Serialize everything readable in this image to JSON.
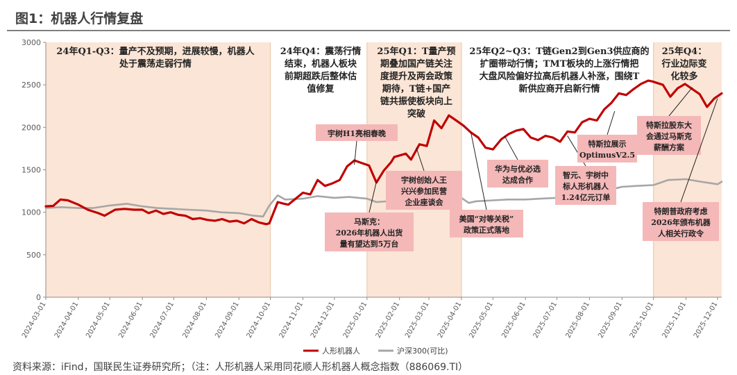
{
  "figure": {
    "title": "图1：机器人行情复盘",
    "source": "资料来源：iFind，国联民生证券研究所；（注：人形机器人采用同花顺人形机器人概念指数（886069.TI）"
  },
  "chart_data": {
    "type": "line",
    "title": "",
    "xlabel": "",
    "ylabel": "",
    "ylim": [
      0,
      3000
    ],
    "yticks": [
      "0",
      "500",
      "1000",
      "1500",
      "2000",
      "2500",
      "3000"
    ],
    "xticks": [
      "2024-03-01",
      "2024-04-01",
      "2024-05-01",
      "2024-06-01",
      "2024-07-01",
      "2024-08-01",
      "2024-09-01",
      "2024-10-01",
      "2024-11-01",
      "2024-12-01",
      "2025-01-01",
      "2025-02-01",
      "2025-03-01",
      "2025-04-01",
      "2025-05-01",
      "2025-06-01",
      "2025-07-01",
      "2025-08-01",
      "2025-09-01",
      "2025-10-01",
      "2025-11-01",
      "2025-12-01"
    ],
    "grid": false,
    "legend_position": "bottom",
    "colors": {
      "robot": "#c00000",
      "csi300": "#a6a6a6",
      "phase_band": "#fbe5d6",
      "annotation_box": "#f4b8b8"
    },
    "series": [
      {
        "name": "人形机器人",
        "color": "#c00000",
        "points": [
          [
            "2024-03-01",
            1070
          ],
          [
            "2024-03-08",
            1075
          ],
          [
            "2024-03-15",
            1150
          ],
          [
            "2024-03-22",
            1140
          ],
          [
            "2024-04-01",
            1090
          ],
          [
            "2024-04-10",
            1030
          ],
          [
            "2024-04-20",
            990
          ],
          [
            "2024-04-26",
            960
          ],
          [
            "2024-05-06",
            1030
          ],
          [
            "2024-05-15",
            1040
          ],
          [
            "2024-05-24",
            1030
          ],
          [
            "2024-06-01",
            1030
          ],
          [
            "2024-06-07",
            990
          ],
          [
            "2024-06-14",
            1020
          ],
          [
            "2024-06-21",
            980
          ],
          [
            "2024-06-28",
            1000
          ],
          [
            "2024-07-05",
            970
          ],
          [
            "2024-07-12",
            960
          ],
          [
            "2024-07-19",
            920
          ],
          [
            "2024-07-26",
            930
          ],
          [
            "2024-08-02",
            910
          ],
          [
            "2024-08-09",
            900
          ],
          [
            "2024-08-16",
            920
          ],
          [
            "2024-08-23",
            890
          ],
          [
            "2024-08-30",
            900
          ],
          [
            "2024-09-06",
            870
          ],
          [
            "2024-09-13",
            920
          ],
          [
            "2024-09-20",
            880
          ],
          [
            "2024-09-27",
            860
          ],
          [
            "2024-09-30",
            870
          ],
          [
            "2024-10-08",
            1120
          ],
          [
            "2024-10-14",
            1100
          ],
          [
            "2024-10-18",
            1090
          ],
          [
            "2024-10-25",
            1160
          ],
          [
            "2024-11-01",
            1230
          ],
          [
            "2024-11-08",
            1210
          ],
          [
            "2024-11-15",
            1380
          ],
          [
            "2024-11-22",
            1310
          ],
          [
            "2024-11-29",
            1340
          ],
          [
            "2024-12-06",
            1380
          ],
          [
            "2024-12-13",
            1540
          ],
          [
            "2024-12-20",
            1610
          ],
          [
            "2024-12-27",
            1580
          ],
          [
            "2025-01-03",
            1550
          ],
          [
            "2025-01-10",
            1350
          ],
          [
            "2025-01-17",
            1490
          ],
          [
            "2025-01-24",
            1590
          ],
          [
            "2025-01-27",
            1650
          ],
          [
            "2025-02-07",
            1690
          ],
          [
            "2025-02-12",
            1620
          ],
          [
            "2025-02-20",
            1800
          ],
          [
            "2025-02-27",
            1780
          ],
          [
            "2025-03-06",
            2080
          ],
          [
            "2025-03-13",
            1990
          ],
          [
            "2025-03-20",
            2140
          ],
          [
            "2025-03-27",
            2080
          ],
          [
            "2025-04-03",
            2020
          ],
          [
            "2025-04-10",
            1940
          ],
          [
            "2025-04-17",
            1880
          ],
          [
            "2025-04-24",
            1760
          ],
          [
            "2025-05-01",
            1740
          ],
          [
            "2025-05-09",
            1860
          ],
          [
            "2025-05-16",
            1920
          ],
          [
            "2025-05-23",
            1960
          ],
          [
            "2025-05-30",
            1980
          ],
          [
            "2025-06-06",
            1880
          ],
          [
            "2025-06-13",
            1850
          ],
          [
            "2025-06-20",
            1900
          ],
          [
            "2025-06-27",
            1880
          ],
          [
            "2025-07-04",
            1830
          ],
          [
            "2025-07-11",
            1950
          ],
          [
            "2025-07-18",
            1940
          ],
          [
            "2025-07-25",
            2060
          ],
          [
            "2025-08-01",
            2100
          ],
          [
            "2025-08-08",
            2080
          ],
          [
            "2025-08-15",
            2210
          ],
          [
            "2025-08-22",
            2290
          ],
          [
            "2025-08-29",
            2400
          ],
          [
            "2025-09-05",
            2380
          ],
          [
            "2025-09-12",
            2450
          ],
          [
            "2025-09-19",
            2510
          ],
          [
            "2025-09-26",
            2550
          ],
          [
            "2025-09-30",
            2540
          ],
          [
            "2025-10-10",
            2500
          ],
          [
            "2025-10-17",
            2360
          ],
          [
            "2025-10-24",
            2460
          ],
          [
            "2025-10-31",
            2510
          ],
          [
            "2025-11-07",
            2450
          ],
          [
            "2025-11-14",
            2390
          ],
          [
            "2025-11-21",
            2240
          ],
          [
            "2025-11-28",
            2340
          ],
          [
            "2025-12-05",
            2400
          ]
        ]
      },
      {
        "name": "沪深300(可比)",
        "color": "#a6a6a6",
        "points": [
          [
            "2024-03-01",
            1050
          ],
          [
            "2024-03-15",
            1060
          ],
          [
            "2024-04-01",
            1050
          ],
          [
            "2024-04-15",
            1050
          ],
          [
            "2024-05-01",
            1080
          ],
          [
            "2024-05-17",
            1100
          ],
          [
            "2024-06-01",
            1070
          ],
          [
            "2024-06-15",
            1050
          ],
          [
            "2024-07-01",
            1040
          ],
          [
            "2024-07-15",
            1030
          ],
          [
            "2024-08-01",
            1020
          ],
          [
            "2024-08-15",
            1000
          ],
          [
            "2024-09-01",
            990
          ],
          [
            "2024-09-15",
            960
          ],
          [
            "2024-09-24",
            950
          ],
          [
            "2024-09-30",
            1080
          ],
          [
            "2024-10-08",
            1200
          ],
          [
            "2024-10-15",
            1150
          ],
          [
            "2024-11-01",
            1160
          ],
          [
            "2024-11-15",
            1190
          ],
          [
            "2024-12-01",
            1170
          ],
          [
            "2024-12-15",
            1180
          ],
          [
            "2025-01-01",
            1160
          ],
          [
            "2025-01-10",
            1120
          ],
          [
            "2025-02-01",
            1140
          ],
          [
            "2025-02-15",
            1160
          ],
          [
            "2025-03-01",
            1170
          ],
          [
            "2025-03-17",
            1190
          ],
          [
            "2025-04-01",
            1170
          ],
          [
            "2025-04-08",
            1110
          ],
          [
            "2025-04-15",
            1130
          ],
          [
            "2025-05-01",
            1140
          ],
          [
            "2025-05-15",
            1150
          ],
          [
            "2025-06-01",
            1150
          ],
          [
            "2025-06-15",
            1160
          ],
          [
            "2025-07-01",
            1170
          ],
          [
            "2025-07-15",
            1190
          ],
          [
            "2025-08-01",
            1200
          ],
          [
            "2025-08-15",
            1250
          ],
          [
            "2025-09-01",
            1300
          ],
          [
            "2025-09-15",
            1310
          ],
          [
            "2025-10-01",
            1320
          ],
          [
            "2025-10-15",
            1380
          ],
          [
            "2025-11-01",
            1390
          ],
          [
            "2025-11-15",
            1360
          ],
          [
            "2025-12-01",
            1330
          ],
          [
            "2025-12-05",
            1360
          ]
        ]
      }
    ],
    "phases": [
      {
        "id": "p1",
        "start": "2024-03-01",
        "end": "2024-10-01",
        "shaded": true,
        "lines": [
          "24年Q1-Q3：量产不及预期，进展较慢，机器人",
          "处于震荡走弱行情"
        ]
      },
      {
        "id": "p2",
        "start": "2024-10-01",
        "end": "2025-01-01",
        "shaded": false,
        "lines": [
          "24年Q4：震荡行情",
          "结束，机器人板块",
          "前期超跌后整体估",
          "值修复"
        ]
      },
      {
        "id": "p3",
        "start": "2025-01-01",
        "end": "2025-04-01",
        "shaded": true,
        "lines": [
          "25年Q1：T量产预",
          "期叠加国产链关注",
          "度提升及两会政策",
          "期待，T链+国产",
          "链共振使板块向上",
          "突破"
        ]
      },
      {
        "id": "p4",
        "start": "2025-04-01",
        "end": "2025-10-01",
        "shaded": false,
        "lines": [
          "25年Q2~Q3：T链Gen2到Gen3供应商的",
          "扩圈带动行情；TMT板块的上涨行情把",
          "大盘风险偏好拉高后机器人补涨，围绕T",
          "新供应商开启新行情"
        ]
      },
      {
        "id": "p5",
        "start": "2025-10-01",
        "end": "2025-12-10",
        "shaded": true,
        "lines": [
          "25年Q4：",
          "行业边际变",
          "化较多"
        ]
      }
    ],
    "annotations": [
      {
        "id": "a1",
        "date": "2024-12-20",
        "lines": [
          "宇树H1亮相春晚"
        ]
      },
      {
        "id": "a2",
        "date": "2025-02-17",
        "lines": [
          "宇树创始人王",
          "兴兴参加民营",
          "企业座谈会"
        ]
      },
      {
        "id": "a3",
        "date": "2025-01-10",
        "lines": [
          "马斯克：",
          "2026年机器人出货",
          "量有望达到5万台"
        ]
      },
      {
        "id": "a4",
        "date": "2025-04-10",
        "lines": [
          "美国“对等关税”",
          "政策正式落地"
        ]
      },
      {
        "id": "a5",
        "date": "2025-05-12",
        "lines": [
          "华为与优必选",
          "达成合作"
        ]
      },
      {
        "id": "a6",
        "date": "2025-07-11",
        "lines": [
          "智元、宇树中",
          "标人形机器人",
          "1.24亿元订单"
        ]
      },
      {
        "id": "a7",
        "date": "2025-08-25",
        "lines": [
          "特斯拉展示",
          "OptimusV2.5"
        ]
      },
      {
        "id": "a8",
        "date": "2025-11-07",
        "lines": [
          "特斯拉股东大",
          "会通过马斯克",
          "薪酬方案"
        ]
      },
      {
        "id": "a9",
        "date": "2025-12-01",
        "lines": [
          "特朗普政府考虑",
          "2026年颁布机器",
          "人相关行政令"
        ]
      }
    ]
  }
}
